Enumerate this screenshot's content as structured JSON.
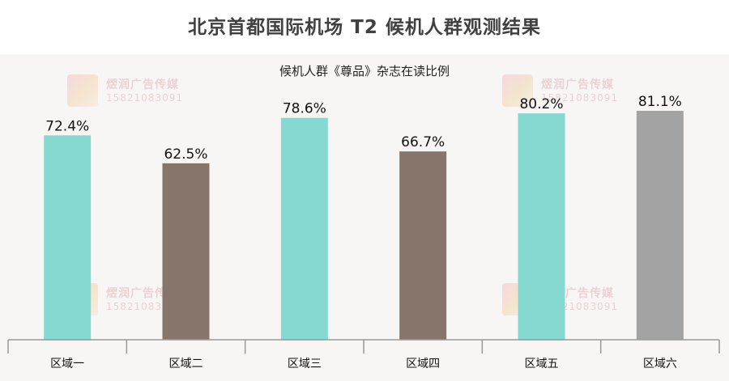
{
  "title": "北京首都国际机场 T2 候机人群观测结果",
  "subtitle": "候机人群《尊品》杂志在读比例",
  "watermark": {
    "name": "熤润广告传媒",
    "phone": "15821083091"
  },
  "colors": {
    "teal": "#86d9d0",
    "brown": "#86756a",
    "gray": "#a3a3a3",
    "axis": "#999999"
  },
  "chart_data": {
    "type": "bar",
    "title": "候机人群《尊品》杂志在读比例",
    "xlabel": "",
    "ylabel": "",
    "categories": [
      "区域一",
      "区域二",
      "区域三",
      "区域四",
      "区域五",
      "区域六"
    ],
    "values": [
      72.4,
      62.5,
      78.6,
      66.7,
      80.2,
      81.1
    ],
    "value_labels": [
      "72.4%",
      "62.5%",
      "78.6%",
      "66.7%",
      "80.2%",
      "81.1%"
    ],
    "bar_colors": [
      "#86d9d0",
      "#86756a",
      "#86d9d0",
      "#86756a",
      "#86d9d0",
      "#a3a3a3"
    ],
    "unit": "%",
    "grid": false,
    "legend": "none"
  }
}
